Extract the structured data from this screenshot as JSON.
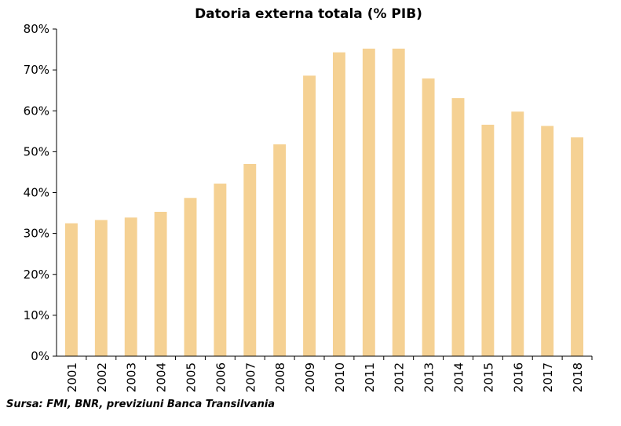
{
  "chart_data": {
    "type": "bar",
    "title": "Datoria externa totala (% PIB)",
    "xlabel": "",
    "ylabel": "",
    "categories": [
      "2001",
      "2002",
      "2003",
      "2004",
      "2005",
      "2006",
      "2007",
      "2008",
      "2009",
      "2010",
      "2011",
      "2012",
      "2013",
      "2014",
      "2015",
      "2016",
      "2017",
      "2018"
    ],
    "series": [
      {
        "values": [
          32.5,
          33.3,
          33.9,
          35.3,
          38.7,
          42.2,
          47.0,
          51.8,
          68.6,
          74.3,
          75.2,
          75.2,
          67.9,
          63.1,
          56.6,
          59.8,
          56.3,
          53.5
        ],
        "color": "#F5D193"
      }
    ],
    "ylim": [
      0,
      80
    ],
    "yticks": [
      0,
      10,
      20,
      30,
      40,
      50,
      60,
      70,
      80
    ],
    "ytick_labels": [
      "0%",
      "10%",
      "20%",
      "30%",
      "40%",
      "50%",
      "60%",
      "70%",
      "80%"
    ],
    "grid": false,
    "legend": "none",
    "source": "Sursa: FMI, BNR, previziuni Banca Transilvania"
  }
}
